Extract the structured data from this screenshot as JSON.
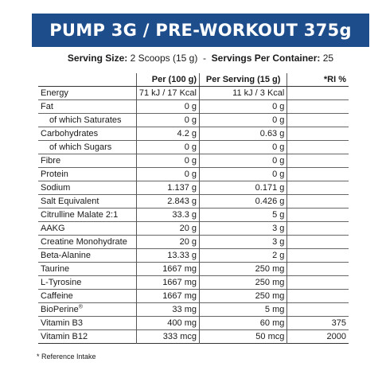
{
  "title": "PUMP 3G / PRE-WORKOUT 375g",
  "serving": {
    "size_label": "Serving Size:",
    "size_value": "2 Scoops (15 g)",
    "separator": "-",
    "per_container_label": "Servings Per Container:",
    "per_container_value": "25"
  },
  "table": {
    "headers": [
      "",
      "Per (100 g)",
      "Per Serving (15 g)",
      "*RI %"
    ],
    "rows": [
      {
        "name": "Energy",
        "per100": "71 kJ / 17 Kcal",
        "perServing": "11 kJ / 3 Kcal",
        "ri": ""
      },
      {
        "name": "Fat",
        "per100": "0 g",
        "perServing": "0 g",
        "ri": ""
      },
      {
        "name": "of which Saturates",
        "per100": "0 g",
        "perServing": "0 g",
        "ri": "",
        "sub": true
      },
      {
        "name": "Carbohydrates",
        "per100": "4.2 g",
        "perServing": "0.63 g",
        "ri": ""
      },
      {
        "name": "of which Sugars",
        "per100": "0 g",
        "perServing": "0 g",
        "ri": "",
        "sub": true
      },
      {
        "name": "Fibre",
        "per100": "0 g",
        "perServing": "0 g",
        "ri": ""
      },
      {
        "name": "Protein",
        "per100": "0 g",
        "perServing": "0 g",
        "ri": ""
      },
      {
        "name": "Sodium",
        "per100": "1.137 g",
        "perServing": "0.171 g",
        "ri": ""
      },
      {
        "name": "Salt Equivalent",
        "per100": "2.843 g",
        "perServing": "0.426 g",
        "ri": ""
      },
      {
        "name": "Citrulline Malate 2:1",
        "per100": "33.3 g",
        "perServing": "5 g",
        "ri": ""
      },
      {
        "name": "AAKG",
        "per100": "20 g",
        "perServing": "3 g",
        "ri": ""
      },
      {
        "name": "Creatine Monohydrate",
        "per100": "20 g",
        "perServing": "3 g",
        "ri": ""
      },
      {
        "name": "Beta-Alanine",
        "per100": "13.33 g",
        "perServing": "2 g",
        "ri": ""
      },
      {
        "name": "Taurine",
        "per100": "1667 mg",
        "perServing": "250 mg",
        "ri": ""
      },
      {
        "name": "L-Tyrosine",
        "per100": "1667 mg",
        "perServing": "250 mg",
        "ri": ""
      },
      {
        "name": "Caffeine",
        "per100": "1667 mg",
        "perServing": "250 mg",
        "ri": ""
      },
      {
        "name": "BioPerine",
        "mark": "®",
        "per100": "33 mg",
        "perServing": "5 mg",
        "ri": ""
      },
      {
        "name": "Vitamin B3",
        "per100": "400 mg",
        "perServing": "60 mg",
        "ri": "375"
      },
      {
        "name": "Vitamin B12",
        "per100": "333 mcg",
        "perServing": "50 mcg",
        "ri": "2000"
      }
    ]
  },
  "footnote": "* Reference Intake"
}
